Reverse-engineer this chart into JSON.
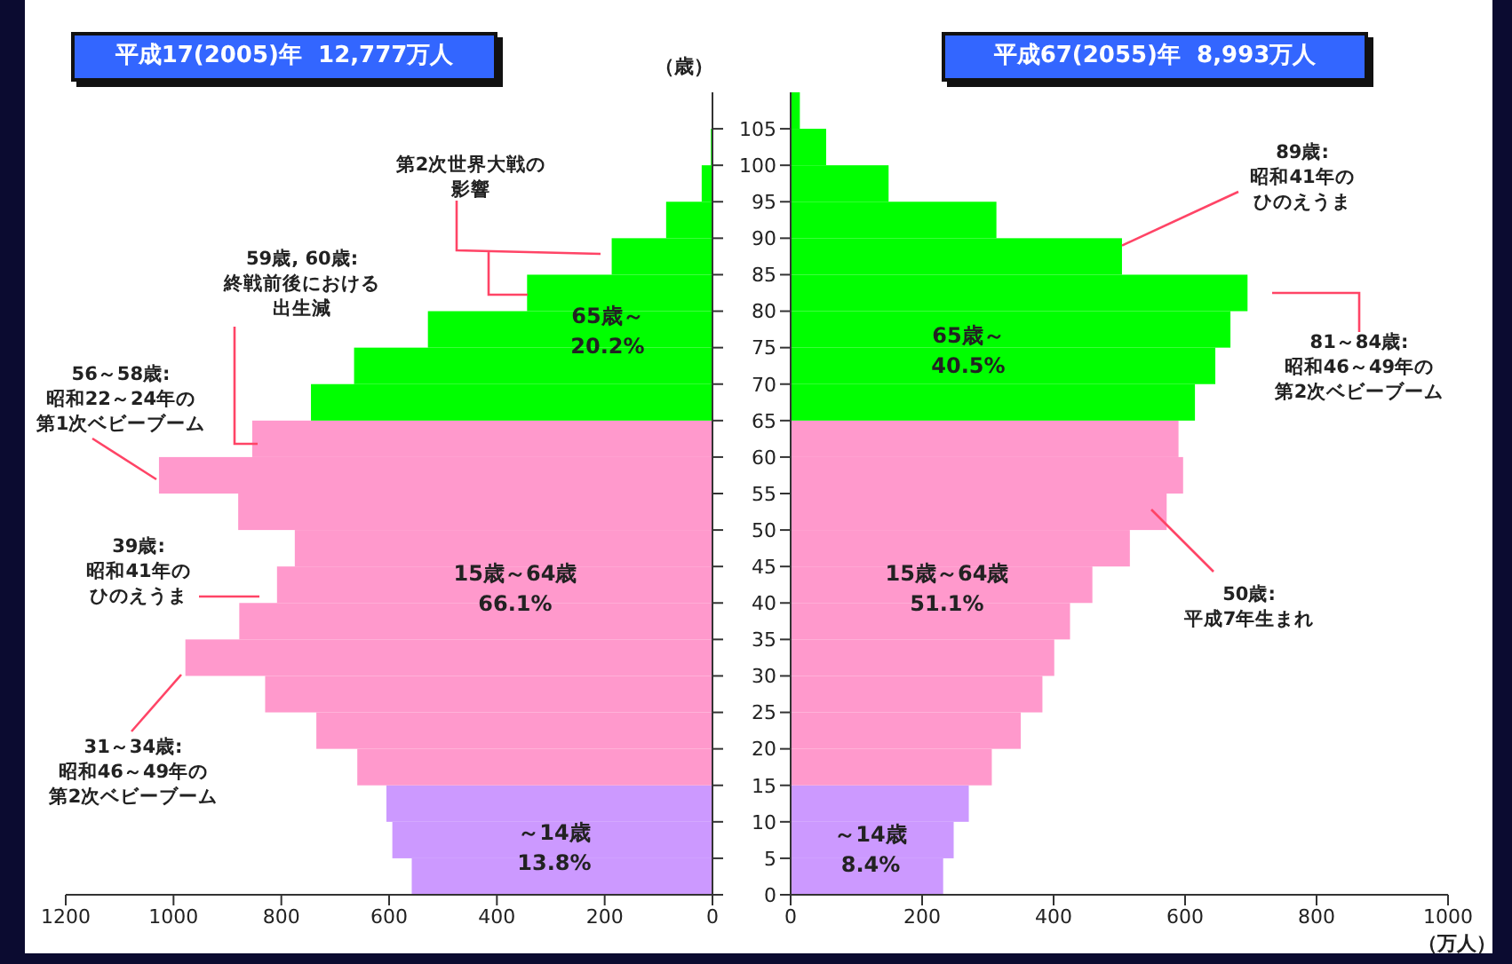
{
  "chart_data": [
    {
      "type": "histogram",
      "orientation": "horizontal",
      "title": "平成17(2005)年  12,777万人",
      "bins": [
        0,
        5,
        10,
        15,
        20,
        25,
        30,
        35,
        40,
        45,
        50,
        55,
        60,
        65,
        70,
        75,
        80,
        85,
        90,
        95,
        100,
        105,
        110
      ],
      "values": [
        558,
        594,
        605,
        659,
        735,
        830,
        978,
        878,
        808,
        775,
        880,
        1027,
        854,
        745,
        665,
        528,
        344,
        187,
        86,
        20,
        3,
        0
      ],
      "colors": [
        "#cc99ff",
        "#cc99ff",
        "#cc99ff",
        "#ff99cc",
        "#ff99cc",
        "#ff99cc",
        "#ff99cc",
        "#ff99cc",
        "#ff99cc",
        "#ff99cc",
        "#ff99cc",
        "#ff99cc",
        "#ff99cc",
        "#00ff00",
        "#00ff00",
        "#00ff00",
        "#00ff00",
        "#00ff00",
        "#00ff00",
        "#00ff00",
        "#00ff00",
        "#00ff00"
      ],
      "xlim": [
        1200,
        0
      ],
      "xticks": [
        1200,
        1000,
        800,
        600,
        400,
        200,
        0
      ],
      "ylim": [
        0,
        110
      ],
      "yticks": [
        0,
        5,
        10,
        15,
        20,
        25,
        30,
        35,
        40,
        45,
        50,
        55,
        60,
        65,
        70,
        75,
        80,
        85,
        90,
        95,
        100,
        105
      ],
      "tick_labels": "x",
      "annotations": [
        "第2次世界大戦の影響",
        "59歳, 60歳:終戦前後における出生減",
        "56～58歳:昭和22～24年の第1次ベビーブーム",
        "39歳:昭和41年のひのえうま",
        "31～34歳:昭和46～49年の第2次ベビーブーム",
        "65歳～",
        "20.2%",
        "15歳～64歳",
        "66.1%",
        "～14歳",
        "13.8%"
      ]
    },
    {
      "type": "histogram",
      "orientation": "horizontal",
      "title": "平成67(2055)年  8,993万人",
      "ylabel": "（歳）",
      "xlabel": "（万人）",
      "bins": [
        0,
        5,
        10,
        15,
        20,
        25,
        30,
        35,
        40,
        45,
        50,
        55,
        60,
        65,
        70,
        75,
        80,
        85,
        90,
        95,
        100,
        105,
        110
      ],
      "values": [
        232,
        248,
        271,
        306,
        350,
        383,
        401,
        425,
        459,
        516,
        572,
        597,
        590,
        615,
        646,
        669,
        695,
        504,
        313,
        149,
        54,
        14
      ],
      "colors": [
        "#cc99ff",
        "#cc99ff",
        "#cc99ff",
        "#ff99cc",
        "#ff99cc",
        "#ff99cc",
        "#ff99cc",
        "#ff99cc",
        "#ff99cc",
        "#ff99cc",
        "#ff99cc",
        "#ff99cc",
        "#ff99cc",
        "#00ff00",
        "#00ff00",
        "#00ff00",
        "#00ff00",
        "#00ff00",
        "#00ff00",
        "#00ff00",
        "#00ff00",
        "#00ff00"
      ],
      "xlim": [
        0,
        1000
      ],
      "xticks": [
        0,
        200,
        400,
        600,
        800,
        1000
      ],
      "ylim": [
        0,
        110
      ],
      "yticks": [
        0,
        5,
        10,
        15,
        20,
        25,
        30,
        35,
        40,
        45,
        50,
        55,
        60,
        65,
        70,
        75,
        80,
        85,
        90,
        95,
        100,
        105
      ],
      "annotations": [
        {
          "text": "89歳:昭和41年のひのえうま",
          "x": 504,
          "y": 89
        },
        "81～84歳:昭和46～49年の第2次ベビーブーム",
        "50歳:平成7年生まれ",
        "65歳～",
        "40.5%",
        "15歳～64歳",
        "51.1%",
        "～14歳",
        "8.4%"
      ]
    }
  ]
}
